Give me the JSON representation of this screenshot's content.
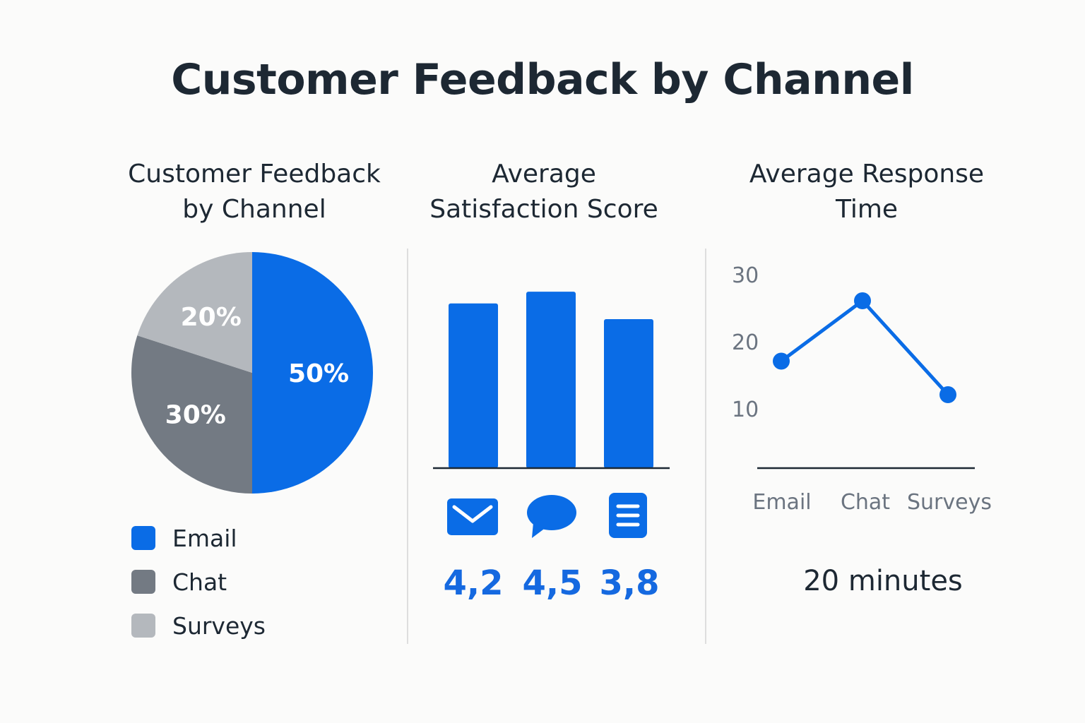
{
  "title": "Customer Feedback by Channel",
  "colors": {
    "email": "#0a6ce6",
    "chat": "#737a83",
    "surveys": "#b4b8bd",
    "accent": "#1569e0"
  },
  "chart_data": [
    {
      "type": "pie",
      "title": "Customer Feedback by Channel",
      "title_lines": [
        "Customer Feedback",
        "by Channel"
      ],
      "slices": [
        {
          "name": "Email",
          "value": 50,
          "label": "50%"
        },
        {
          "name": "Chat",
          "value": 30,
          "label": "30%"
        },
        {
          "name": "Surveys",
          "value": 20,
          "label": "20%"
        }
      ],
      "legend": [
        "Email",
        "Chat",
        "Surveys"
      ]
    },
    {
      "type": "bar",
      "title": "Average Satisfaction Score",
      "title_lines": [
        "Average",
        "Satisfaction Score"
      ],
      "categories": [
        "Email",
        "Chat",
        "Surveys"
      ],
      "icons": [
        "envelope-icon",
        "chat-bubble-icon",
        "document-icon"
      ],
      "values": [
        4.2,
        4.5,
        3.8
      ],
      "value_labels": [
        "4,2",
        "4,5",
        "3,8"
      ],
      "ylim": [
        0,
        5.6
      ]
    },
    {
      "type": "line",
      "title": "Average Response Time",
      "title_lines": [
        "Average Response",
        "Time"
      ],
      "x": [
        "Email",
        "Chat",
        "Surveys"
      ],
      "y": [
        17,
        26,
        12
      ],
      "yticks": [
        "10",
        "20",
        "30"
      ],
      "ylim": [
        0,
        30
      ],
      "summary": "20 minutes"
    }
  ]
}
